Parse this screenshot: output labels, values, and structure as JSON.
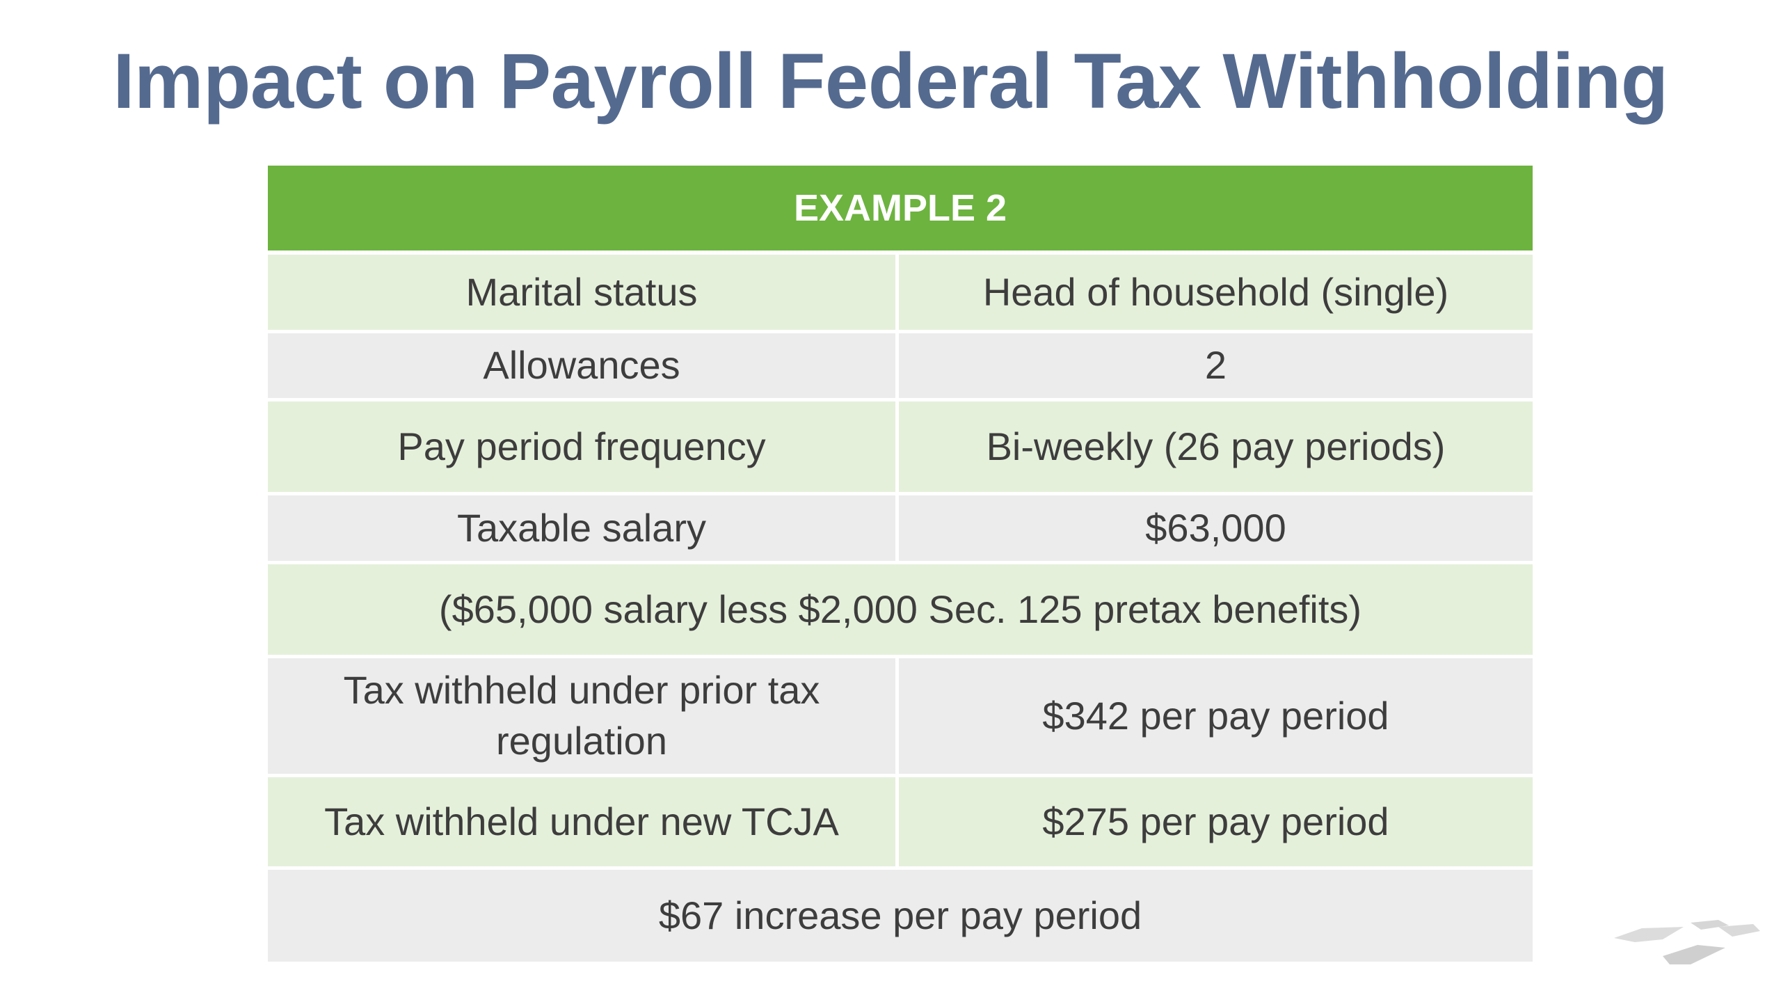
{
  "slide": {
    "title": "Impact on Payroll Federal Tax Withholding"
  },
  "table": {
    "header": "EXAMPLE 2",
    "rows": [
      {
        "label": "Marital status",
        "value": "Head of household (single)"
      },
      {
        "label": "Allowances",
        "value": "2"
      },
      {
        "label": "Pay period frequency",
        "value": "Bi-weekly (26 pay periods)"
      },
      {
        "label": "Taxable salary",
        "value": "$63,000"
      }
    ],
    "note": "($65,000 salary less $2,000 Sec. 125 pretax benefits)",
    "rows2": [
      {
        "label": "Tax withheld under prior tax regulation",
        "value": "$342 per pay period"
      },
      {
        "label": "Tax withheld under new TCJA",
        "value": "$275 per pay period"
      }
    ],
    "summary": "$67 increase per pay period"
  },
  "colors": {
    "title": "#556a8f",
    "header_bg": "#6db33f",
    "row_green": "#e5f0db",
    "row_grey": "#ececec"
  },
  "icons": {
    "corner_logo": "stacked-tiles-logo-icon"
  }
}
